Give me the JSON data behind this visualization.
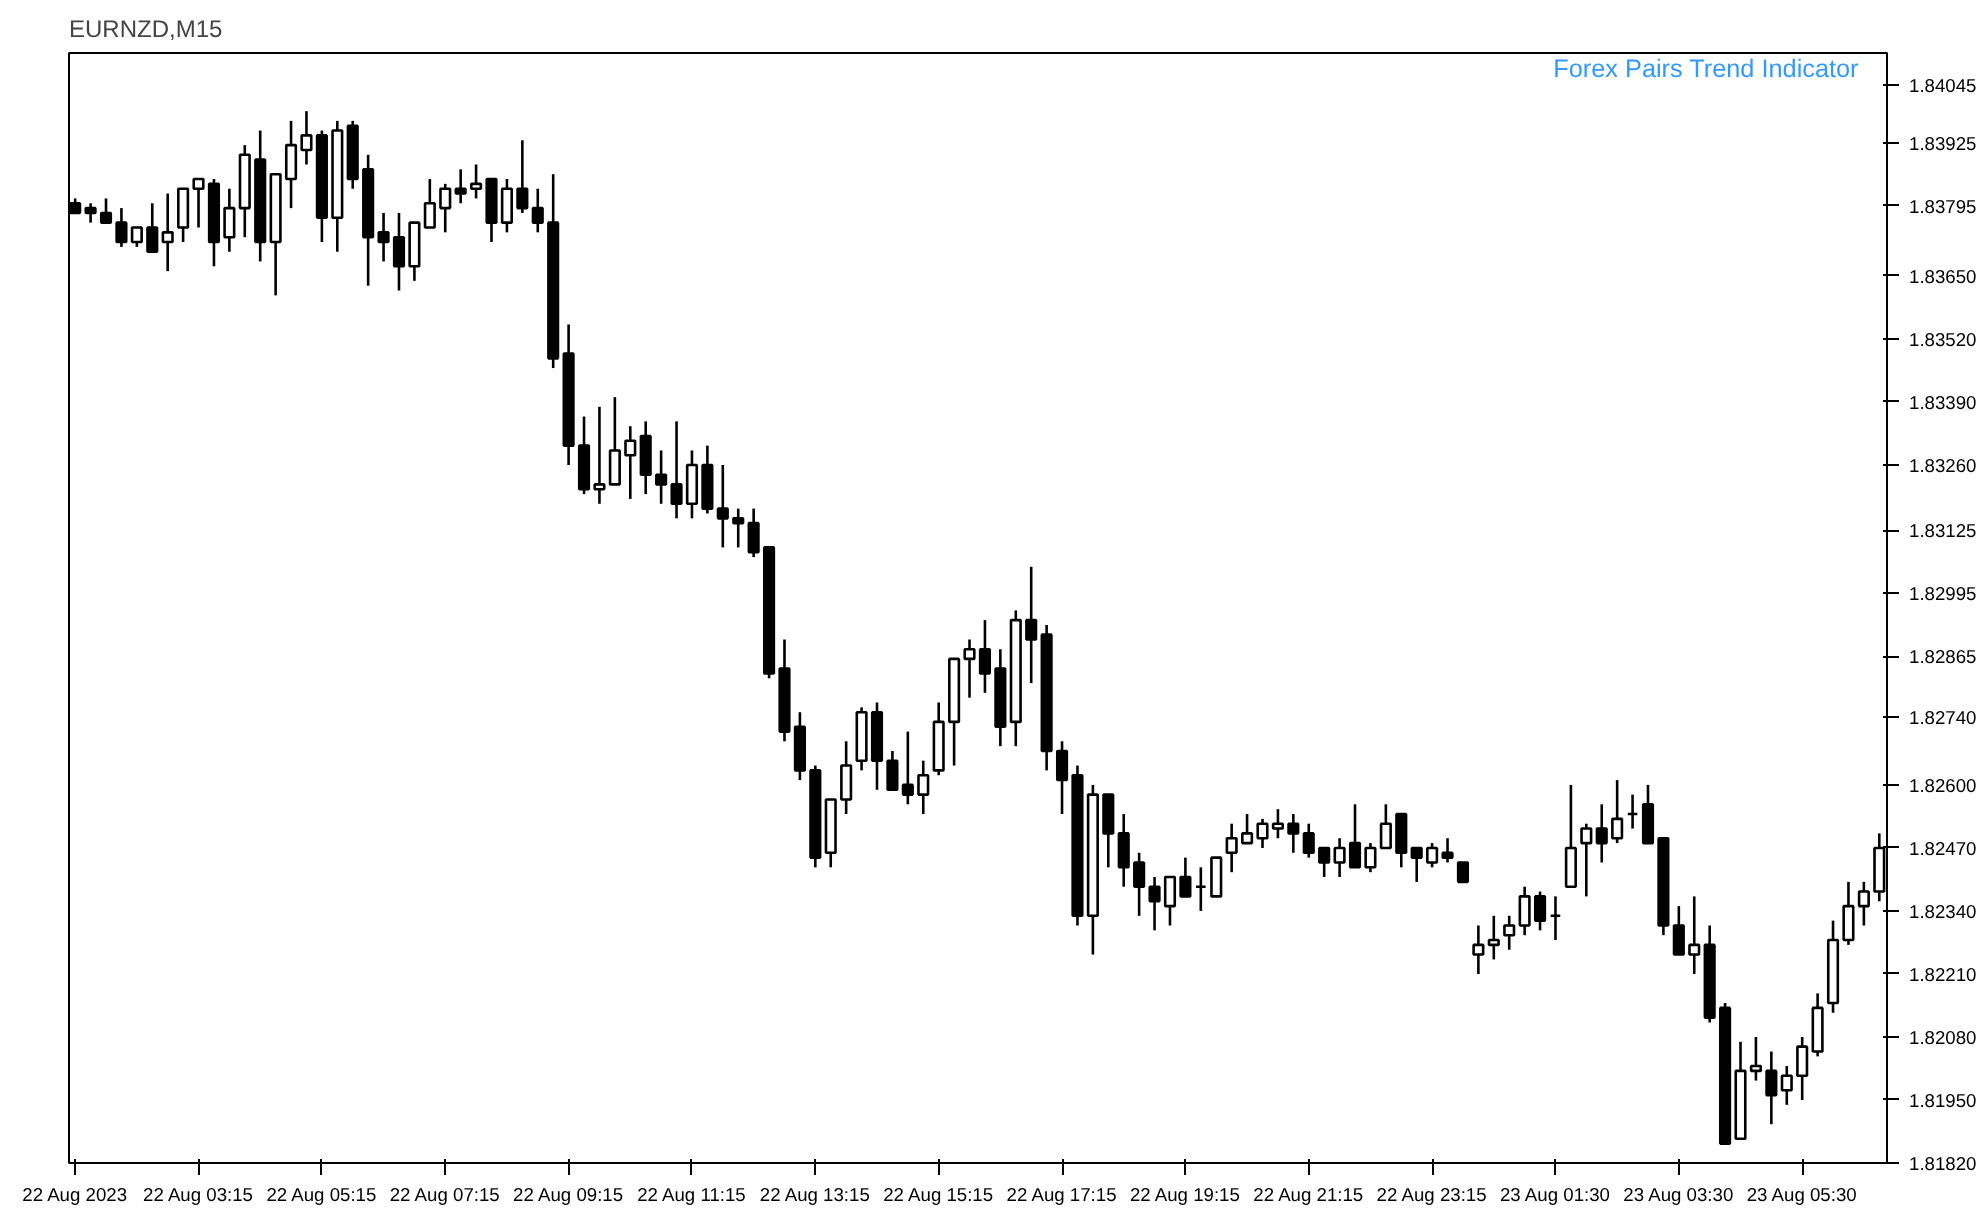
{
  "chart_data": {
    "type": "candlestick",
    "title": "EURNZD,M15",
    "annotations": [
      "Forex Pairs Trend Indicator"
    ],
    "categories": [
      "22 Aug 2023",
      null,
      null,
      null,
      null,
      null,
      null,
      null,
      "22 Aug 03:15",
      null,
      null,
      null,
      null,
      null,
      null,
      null,
      "22 Aug 05:15",
      null,
      null,
      null,
      null,
      null,
      null,
      null,
      "22 Aug 07:15",
      null,
      null,
      null,
      null,
      null,
      null,
      null,
      "22 Aug 09:15",
      null,
      null,
      null,
      null,
      null,
      null,
      null,
      "22 Aug 11:15",
      null,
      null,
      null,
      null,
      null,
      null,
      null,
      "22 Aug 13:15",
      null,
      null,
      null,
      null,
      null,
      null,
      null,
      "22 Aug 15:15",
      null,
      null,
      null,
      null,
      null,
      null,
      null,
      "22 Aug 17:15",
      null,
      null,
      null,
      null,
      null,
      null,
      null,
      "22 Aug 19:15",
      null,
      null,
      null,
      null,
      null,
      null,
      null,
      "22 Aug 21:15",
      null,
      null,
      null,
      null,
      null,
      null,
      null,
      "22 Aug 23:15",
      null,
      null,
      null,
      null,
      null,
      null,
      null,
      "23 Aug 01:30",
      null,
      null,
      null,
      null,
      null,
      null,
      null,
      "23 Aug 03:30",
      null,
      null,
      null,
      null,
      null,
      null,
      null,
      "23 Aug 05:30",
      null,
      null,
      null,
      null,
      null
    ],
    "ohlc": [
      [
        1.838,
        1.8381,
        1.8378,
        1.8378
      ],
      [
        1.8379,
        1.838,
        1.8376,
        1.8378
      ],
      [
        1.8378,
        1.8381,
        1.8376,
        1.8376
      ],
      [
        1.8376,
        1.8379,
        1.8371,
        1.8372
      ],
      [
        1.8372,
        1.8375,
        1.8371,
        1.8375
      ],
      [
        1.8375,
        1.838,
        1.837,
        1.837
      ],
      [
        1.8372,
        1.8382,
        1.8366,
        1.8374
      ],
      [
        1.8375,
        1.8383,
        1.8372,
        1.8383
      ],
      [
        1.8383,
        1.8385,
        1.8375,
        1.8385
      ],
      [
        1.8384,
        1.8385,
        1.8367,
        1.8372
      ],
      [
        1.8373,
        1.8383,
        1.837,
        1.8379
      ],
      [
        1.8379,
        1.8392,
        1.8373,
        1.839
      ],
      [
        1.8389,
        1.8395,
        1.8368,
        1.8372
      ],
      [
        1.8372,
        1.8386,
        1.8361,
        1.8386
      ],
      [
        1.8385,
        1.8397,
        1.8379,
        1.8392
      ],
      [
        1.8391,
        1.8399,
        1.8388,
        1.8394
      ],
      [
        1.8394,
        1.8395,
        1.8372,
        1.8377
      ],
      [
        1.8377,
        1.8397,
        1.837,
        1.8395
      ],
      [
        1.8396,
        1.8397,
        1.8383,
        1.8385
      ],
      [
        1.8387,
        1.839,
        1.8363,
        1.8373
      ],
      [
        1.8374,
        1.8378,
        1.8368,
        1.8372
      ],
      [
        1.8373,
        1.8378,
        1.8362,
        1.8367
      ],
      [
        1.8367,
        1.8376,
        1.8364,
        1.8376
      ],
      [
        1.8375,
        1.8385,
        1.8375,
        1.838
      ],
      [
        1.8379,
        1.8384,
        1.8374,
        1.8383
      ],
      [
        1.8383,
        1.8387,
        1.838,
        1.8382
      ],
      [
        1.8383,
        1.8388,
        1.8381,
        1.8384
      ],
      [
        1.8385,
        1.8385,
        1.8372,
        1.8376
      ],
      [
        1.8376,
        1.8385,
        1.8374,
        1.8383
      ],
      [
        1.8383,
        1.8393,
        1.8378,
        1.8379
      ],
      [
        1.8379,
        1.8383,
        1.8374,
        1.8376
      ],
      [
        1.8376,
        1.8386,
        1.8346,
        1.8348
      ],
      [
        1.8349,
        1.8355,
        1.8326,
        1.833
      ],
      [
        1.833,
        1.8336,
        1.832,
        1.8321
      ],
      [
        1.8321,
        1.8338,
        1.8318,
        1.8322
      ],
      [
        1.8322,
        1.834,
        1.8322,
        1.8329
      ],
      [
        1.8328,
        1.8334,
        1.8319,
        1.8331
      ],
      [
        1.8332,
        1.8335,
        1.832,
        1.8324
      ],
      [
        1.8324,
        1.8329,
        1.8318,
        1.8322
      ],
      [
        1.8322,
        1.8335,
        1.8315,
        1.8318
      ],
      [
        1.8318,
        1.8329,
        1.8315,
        1.8326
      ],
      [
        1.8326,
        1.833,
        1.8316,
        1.8317
      ],
      [
        1.8317,
        1.8326,
        1.8309,
        1.8315
      ],
      [
        1.8315,
        1.8317,
        1.8309,
        1.8314
      ],
      [
        1.8314,
        1.8317,
        1.8307,
        1.8308
      ],
      [
        1.8309,
        1.8309,
        1.8282,
        1.8283
      ],
      [
        1.8284,
        1.829,
        1.8269,
        1.8271
      ],
      [
        1.8272,
        1.8275,
        1.8261,
        1.8263
      ],
      [
        1.8263,
        1.8264,
        1.8243,
        1.8245
      ],
      [
        1.8246,
        1.8257,
        1.8243,
        1.8257
      ],
      [
        1.8257,
        1.8269,
        1.8254,
        1.8264
      ],
      [
        1.8265,
        1.8276,
        1.8263,
        1.8275
      ],
      [
        1.8275,
        1.8277,
        1.8259,
        1.8265
      ],
      [
        1.8265,
        1.8267,
        1.8259,
        1.8259
      ],
      [
        1.826,
        1.8271,
        1.8256,
        1.8258
      ],
      [
        1.8258,
        1.8265,
        1.8254,
        1.8262
      ],
      [
        1.8263,
        1.8277,
        1.8262,
        1.8273
      ],
      [
        1.8273,
        1.8286,
        1.8264,
        1.8286
      ],
      [
        1.8286,
        1.829,
        1.8278,
        1.8288
      ],
      [
        1.8288,
        1.8294,
        1.8279,
        1.8283
      ],
      [
        1.8284,
        1.8288,
        1.8268,
        1.8272
      ],
      [
        1.8273,
        1.8296,
        1.8268,
        1.8294
      ],
      [
        1.8294,
        1.8305,
        1.8281,
        1.829
      ],
      [
        1.8291,
        1.8293,
        1.8263,
        1.8267
      ],
      [
        1.8267,
        1.8269,
        1.8254,
        1.8261
      ],
      [
        1.8262,
        1.8264,
        1.8231,
        1.8233
      ],
      [
        1.8233,
        1.826,
        1.8225,
        1.8258
      ],
      [
        1.8258,
        1.8258,
        1.8243,
        1.825
      ],
      [
        1.825,
        1.8254,
        1.8239,
        1.8243
      ],
      [
        1.8244,
        1.8246,
        1.8233,
        1.8239
      ],
      [
        1.8239,
        1.8241,
        1.823,
        1.8236
      ],
      [
        1.8235,
        1.8241,
        1.8231,
        1.8241
      ],
      [
        1.8241,
        1.8245,
        1.8237,
        1.8237
      ],
      [
        1.8239,
        1.8243,
        1.8234,
        1.8239
      ],
      [
        1.8237,
        1.8245,
        1.8237,
        1.8245
      ],
      [
        1.8246,
        1.8252,
        1.8242,
        1.8249
      ],
      [
        1.8248,
        1.8254,
        1.8248,
        1.825
      ],
      [
        1.8249,
        1.8253,
        1.8247,
        1.8252
      ],
      [
        1.8251,
        1.8255,
        1.8249,
        1.8252
      ],
      [
        1.8252,
        1.8254,
        1.8246,
        1.825
      ],
      [
        1.825,
        1.8252,
        1.8245,
        1.8246
      ],
      [
        1.8247,
        1.8247,
        1.8241,
        1.8244
      ],
      [
        1.8244,
        1.8249,
        1.8241,
        1.8247
      ],
      [
        1.8248,
        1.8256,
        1.8243,
        1.8243
      ],
      [
        1.8243,
        1.8248,
        1.8242,
        1.8247
      ],
      [
        1.8247,
        1.8256,
        1.8247,
        1.8252
      ],
      [
        1.8254,
        1.8254,
        1.8243,
        1.8246
      ],
      [
        1.8247,
        1.8247,
        1.824,
        1.8245
      ],
      [
        1.8244,
        1.8248,
        1.8243,
        1.8247
      ],
      [
        1.8246,
        1.8249,
        1.8244,
        1.8245
      ],
      [
        1.8244,
        1.8244,
        1.824,
        1.824
      ],
      [
        1.8225,
        1.8231,
        1.8221,
        1.8227
      ],
      [
        1.8227,
        1.8233,
        1.8224,
        1.8228
      ],
      [
        1.8229,
        1.8233,
        1.8226,
        1.8231
      ],
      [
        1.8231,
        1.8239,
        1.8229,
        1.8237
      ],
      [
        1.8237,
        1.8238,
        1.823,
        1.8232
      ],
      [
        1.8233,
        1.8237,
        1.8228,
        1.8233
      ],
      [
        1.8239,
        1.826,
        1.8239,
        1.8247
      ],
      [
        1.8248,
        1.8252,
        1.8237,
        1.8251
      ],
      [
        1.8251,
        1.8256,
        1.8244,
        1.8248
      ],
      [
        1.8249,
        1.8261,
        1.8248,
        1.8253
      ],
      [
        1.8254,
        1.8258,
        1.8251,
        1.8254
      ],
      [
        1.8256,
        1.826,
        1.8248,
        1.8248
      ],
      [
        1.8249,
        1.8249,
        1.8229,
        1.8231
      ],
      [
        1.8231,
        1.8235,
        1.8225,
        1.8225
      ],
      [
        1.8225,
        1.8237,
        1.8221,
        1.8227
      ],
      [
        1.8227,
        1.8231,
        1.8211,
        1.8212
      ],
      [
        1.8214,
        1.8215,
        1.8186,
        1.8186
      ],
      [
        1.8187,
        1.8207,
        1.8187,
        1.8201
      ],
      [
        1.8201,
        1.8208,
        1.8199,
        1.8202
      ],
      [
        1.8201,
        1.8205,
        1.819,
        1.8196
      ],
      [
        1.8197,
        1.8202,
        1.8194,
        1.82
      ],
      [
        1.82,
        1.8208,
        1.8195,
        1.8206
      ],
      [
        1.8205,
        1.8217,
        1.8204,
        1.8214
      ],
      [
        1.8215,
        1.8232,
        1.8213,
        1.8228
      ],
      [
        1.8228,
        1.824,
        1.8227,
        1.8235
      ],
      [
        1.8235,
        1.824,
        1.8231,
        1.8238
      ],
      [
        1.8238,
        1.825,
        1.8236,
        1.8247
      ]
    ],
    "ylim": [
      1.8182,
      1.8411
    ],
    "yticks": [
      {
        "value": 1.84045,
        "label": "1.84045"
      },
      {
        "value": 1.83925,
        "label": "1.83925"
      },
      {
        "value": 1.83795,
        "label": "1.83795"
      },
      {
        "value": 1.8365,
        "label": "1.83650"
      },
      {
        "value": 1.8352,
        "label": "1.83520"
      },
      {
        "value": 1.8339,
        "label": "1.83390"
      },
      {
        "value": 1.8326,
        "label": "1.83260"
      },
      {
        "value": 1.83125,
        "label": "1.83125"
      },
      {
        "value": 1.82995,
        "label": "1.82995"
      },
      {
        "value": 1.82865,
        "label": "1.82865"
      },
      {
        "value": 1.8274,
        "label": "1.82740"
      },
      {
        "value": 1.826,
        "label": "1.82600"
      },
      {
        "value": 1.8247,
        "label": "1.82470"
      },
      {
        "value": 1.8234,
        "label": "1.82340"
      },
      {
        "value": 1.8221,
        "label": "1.82210"
      },
      {
        "value": 1.8208,
        "label": "1.82080"
      },
      {
        "value": 1.8195,
        "label": "1.81950"
      },
      {
        "value": 1.8182,
        "label": "1.81820"
      }
    ],
    "grid": false
  }
}
